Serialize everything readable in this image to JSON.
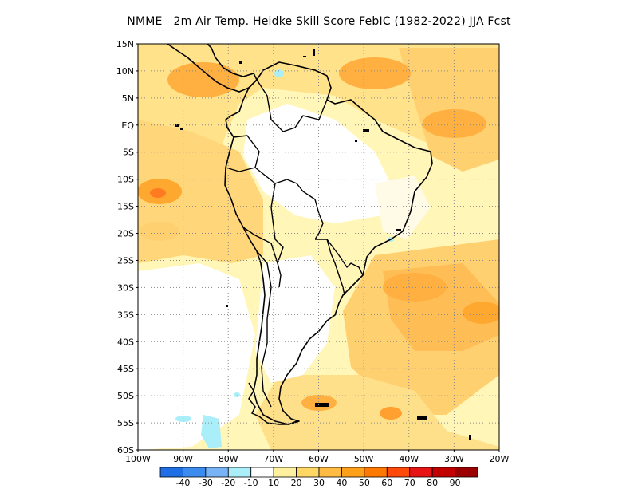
{
  "title": "NMME   2m Air Temp. Heidke Skill Score FebIC (1982-2022) JJA Fcst",
  "map": {
    "lat_labels": [
      "15N",
      "10N",
      "5N",
      "EQ",
      "5S",
      "10S",
      "15S",
      "20S",
      "25S",
      "30S",
      "35S",
      "40S",
      "45S",
      "50S",
      "55S",
      "60S"
    ],
    "lon_labels": [
      "100W",
      "90W",
      "80W",
      "70W",
      "60W",
      "50W",
      "40W",
      "30W",
      "20W"
    ],
    "lon_range": [
      -100,
      -20
    ],
    "lat_range": [
      -60,
      15
    ],
    "grid": "dotted"
  },
  "colorbar": {
    "colors": [
      "#1e6ee6",
      "#3c8cf0",
      "#78b4f5",
      "#aaeefa",
      "#ffffff",
      "#fff0a0",
      "#ffd765",
      "#ffbb44",
      "#ffa01a",
      "#ff7800",
      "#ff4a0a",
      "#e61414",
      "#c30000",
      "#9b0000"
    ],
    "labels": [
      "-40",
      "-30",
      "-20",
      "-10",
      "10",
      "20",
      "30",
      "40",
      "50",
      "60",
      "70",
      "80",
      "90"
    ]
  }
}
